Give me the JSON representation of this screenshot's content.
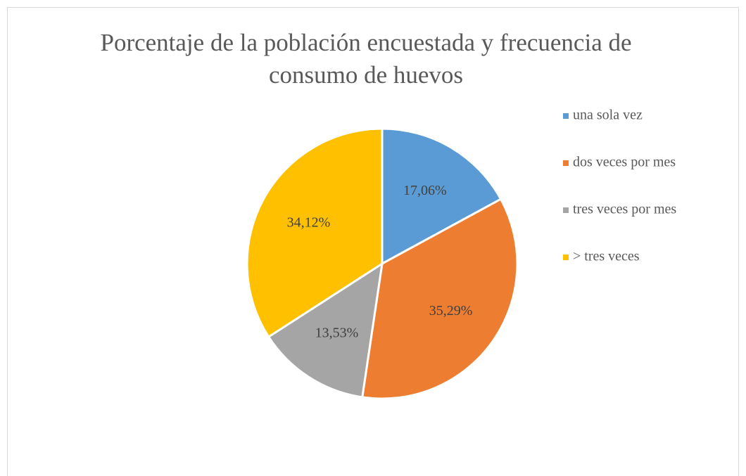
{
  "chart_data": {
    "type": "pie",
    "title": "Porcentaje de la población encuestada y frecuencia de consumo de huevos",
    "categories": [
      "una sola vez",
      "dos veces por mes",
      "tres veces por mes",
      "> tres veces"
    ],
    "values": [
      17.06,
      35.29,
      13.53,
      34.12
    ],
    "value_labels": [
      "17,06%",
      "35,29%",
      "13,53%",
      "34,12%"
    ],
    "colors": [
      "#5b9bd5",
      "#ed7d31",
      "#a5a5a5",
      "#ffc000"
    ],
    "legend": "right"
  }
}
